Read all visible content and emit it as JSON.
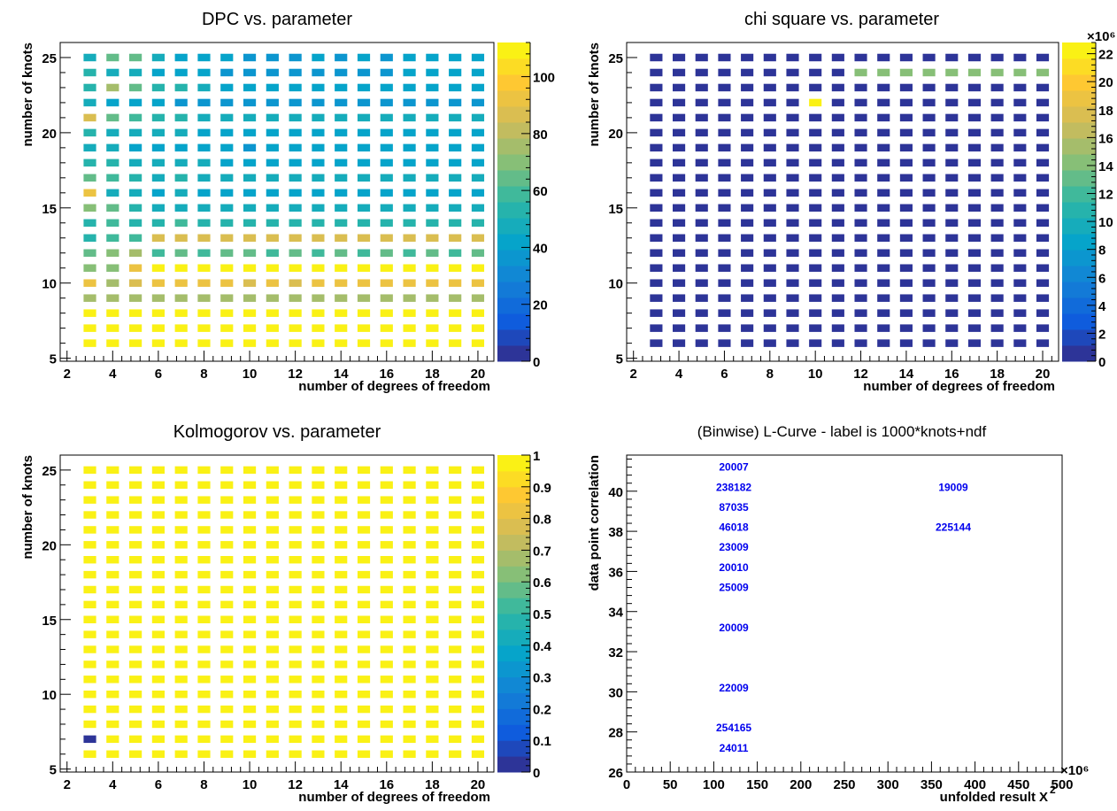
{
  "colors": {
    "palette": [
      "#352a87",
      "#0f5cdd",
      "#1481d6",
      "#06a4ca",
      "#2eb7a4",
      "#87bf77",
      "#d1bb59",
      "#fec832",
      "#f9fb0e"
    ],
    "label_color": "#0000ee",
    "axis_color": "#000000"
  },
  "chart_data": [
    {
      "id": "dpc",
      "type": "heatmap",
      "title": "DPC vs. parameter",
      "xlabel": "number of degrees of freedom",
      "ylabel": "number of knots",
      "xlim": [
        1.7,
        20.7
      ],
      "ylim": [
        4.8,
        26
      ],
      "xticks": [
        "2",
        "4",
        "6",
        "8",
        "10",
        "12",
        "14",
        "16",
        "18",
        "20"
      ],
      "yticks": [
        "5",
        "10",
        "15",
        "20",
        "25"
      ],
      "x": [
        3,
        4,
        5,
        6,
        7,
        8,
        9,
        10,
        11,
        12,
        13,
        14,
        15,
        16,
        17,
        18,
        19,
        20
      ],
      "y": [
        6,
        7,
        8,
        9,
        10,
        11,
        12,
        13,
        14,
        15,
        16,
        17,
        18,
        19,
        20,
        21,
        22,
        23,
        24,
        25
      ],
      "zlim": [
        0,
        112
      ],
      "zticks": [
        "0",
        "20",
        "40",
        "60",
        "80",
        "100"
      ],
      "z": [
        [
          110,
          110,
          110,
          110,
          110,
          110,
          110,
          110,
          110,
          110,
          110,
          110,
          110,
          110,
          110,
          110,
          110,
          110
        ],
        [
          110,
          110,
          110,
          110,
          110,
          110,
          110,
          110,
          110,
          110,
          110,
          110,
          110,
          110,
          110,
          110,
          110,
          110
        ],
        [
          110,
          110,
          110,
          110,
          110,
          110,
          110,
          110,
          110,
          110,
          110,
          110,
          110,
          110,
          110,
          110,
          110,
          110
        ],
        [
          75,
          75,
          75,
          75,
          75,
          75,
          75,
          75,
          75,
          75,
          75,
          75,
          75,
          75,
          75,
          75,
          75,
          75
        ],
        [
          92,
          78,
          85,
          95,
          92,
          92,
          90,
          88,
          92,
          88,
          92,
          95,
          92,
          95,
          92,
          92,
          92,
          90
        ],
        [
          70,
          72,
          92,
          110,
          110,
          110,
          110,
          110,
          110,
          110,
          110,
          110,
          110,
          110,
          110,
          110,
          110,
          110
        ],
        [
          62,
          68,
          75,
          60,
          62,
          60,
          62,
          62,
          60,
          62,
          60,
          62,
          60,
          62,
          60,
          62,
          60,
          62
        ],
        [
          55,
          60,
          60,
          85,
          85,
          85,
          85,
          85,
          85,
          85,
          85,
          85,
          85,
          85,
          85,
          85,
          85,
          85
        ],
        [
          55,
          58,
          55,
          55,
          58,
          55,
          55,
          55,
          55,
          55,
          55,
          55,
          55,
          55,
          55,
          55,
          55,
          55
        ],
        [
          72,
          62,
          55,
          45,
          50,
          45,
          48,
          45,
          45,
          45,
          48,
          45,
          45,
          45,
          45,
          45,
          45,
          45
        ],
        [
          92,
          50,
          45,
          42,
          45,
          42,
          42,
          40,
          42,
          42,
          42,
          42,
          42,
          42,
          42,
          42,
          42,
          42
        ],
        [
          65,
          58,
          55,
          50,
          55,
          50,
          50,
          48,
          50,
          50,
          50,
          50,
          50,
          50,
          48,
          50,
          50,
          50
        ],
        [
          55,
          55,
          50,
          45,
          45,
          45,
          42,
          42,
          42,
          42,
          42,
          42,
          42,
          42,
          42,
          42,
          42,
          42
        ],
        [
          50,
          45,
          42,
          42,
          42,
          42,
          42,
          38,
          40,
          42,
          42,
          42,
          42,
          42,
          42,
          40,
          40,
          42
        ],
        [
          55,
          50,
          50,
          48,
          45,
          42,
          42,
          40,
          42,
          42,
          42,
          42,
          42,
          42,
          42,
          42,
          42,
          42
        ],
        [
          88,
          62,
          60,
          55,
          52,
          50,
          50,
          48,
          50,
          48,
          50,
          48,
          50,
          48,
          50,
          50,
          48,
          50
        ],
        [
          48,
          42,
          42,
          40,
          38,
          38,
          38,
          38,
          38,
          38,
          38,
          38,
          38,
          38,
          38,
          38,
          38,
          38
        ],
        [
          55,
          75,
          62,
          55,
          52,
          48,
          42,
          40,
          42,
          40,
          42,
          40,
          42,
          40,
          42,
          42,
          40,
          42
        ],
        [
          55,
          50,
          50,
          42,
          42,
          40,
          38,
          35,
          36,
          38,
          38,
          38,
          38,
          38,
          40,
          40,
          42,
          42
        ],
        [
          50,
          65,
          62,
          45,
          42,
          42,
          40,
          38,
          38,
          38,
          40,
          38,
          40,
          38,
          40,
          42,
          40,
          42
        ]
      ]
    },
    {
      "id": "chisq",
      "type": "heatmap",
      "title": "chi square vs. parameter",
      "xlabel": "number of degrees of freedom",
      "ylabel": "number of knots",
      "xlim": [
        1.7,
        20.7
      ],
      "ylim": [
        4.8,
        26
      ],
      "xticks": [
        "2",
        "4",
        "6",
        "8",
        "10",
        "12",
        "14",
        "16",
        "18",
        "20"
      ],
      "yticks": [
        "5",
        "10",
        "15",
        "20",
        "25"
      ],
      "x": [
        3,
        4,
        5,
        6,
        7,
        8,
        9,
        10,
        11,
        12,
        13,
        14,
        15,
        16,
        17,
        18,
        19,
        20
      ],
      "y": [
        6,
        7,
        8,
        9,
        10,
        11,
        12,
        13,
        14,
        15,
        16,
        17,
        18,
        19,
        20,
        21,
        22,
        23,
        24,
        25
      ],
      "zlim": [
        0,
        22.8
      ],
      "zticks": [
        "0",
        "2",
        "4",
        "6",
        "8",
        "10",
        "12",
        "14",
        "16",
        "18",
        "20",
        "22"
      ],
      "zexponent": "×10⁶",
      "z_note": "All bins ~0.3 except row knots=24 for ndf 12-20 (~14) and cell (ndf=10, knots=22) = 22",
      "base": 0.3,
      "overrides": [
        {
          "x": 12,
          "y": 24,
          "v": 14.5
        },
        {
          "x": 13,
          "y": 24,
          "v": 14
        },
        {
          "x": 14,
          "y": 24,
          "v": 14
        },
        {
          "x": 15,
          "y": 24,
          "v": 14
        },
        {
          "x": 16,
          "y": 24,
          "v": 14
        },
        {
          "x": 17,
          "y": 24,
          "v": 14
        },
        {
          "x": 18,
          "y": 24,
          "v": 14
        },
        {
          "x": 19,
          "y": 24,
          "v": 14
        },
        {
          "x": 20,
          "y": 24,
          "v": 14
        },
        {
          "x": 10,
          "y": 22,
          "v": 22
        }
      ]
    },
    {
      "id": "kolmo",
      "type": "heatmap",
      "title": "Kolmogorov vs. parameter",
      "xlabel": "number of degrees of freedom",
      "ylabel": "number of knots",
      "xlim": [
        1.7,
        20.7
      ],
      "ylim": [
        4.8,
        26
      ],
      "xticks": [
        "2",
        "4",
        "6",
        "8",
        "10",
        "12",
        "14",
        "16",
        "18",
        "20"
      ],
      "yticks": [
        "5",
        "10",
        "15",
        "20",
        "25"
      ],
      "x": [
        3,
        4,
        5,
        6,
        7,
        8,
        9,
        10,
        11,
        12,
        13,
        14,
        15,
        16,
        17,
        18,
        19,
        20
      ],
      "y": [
        6,
        7,
        8,
        9,
        10,
        11,
        12,
        13,
        14,
        15,
        16,
        17,
        18,
        19,
        20,
        21,
        22,
        23,
        24,
        25
      ],
      "zlim": [
        0,
        1
      ],
      "zticks": [
        "0",
        "0.1",
        "0.2",
        "0.3",
        "0.4",
        "0.5",
        "0.6",
        "0.7",
        "0.8",
        "0.9",
        "1"
      ],
      "base": 0.99,
      "overrides": [
        {
          "x": 3,
          "y": 7,
          "v": 0.02
        }
      ]
    },
    {
      "id": "lcurve",
      "type": "scatter",
      "title": "(Binwise) L-Curve - label is 1000*knots+ndf",
      "xlabel": "unfolded result",
      "xlabel_symbol": "X",
      "xlabel_sup": "2",
      "xexponent": "×10⁶",
      "ylabel": "data point correlation",
      "xlim": [
        0,
        500
      ],
      "ylim": [
        26,
        41.8
      ],
      "xticks": [
        "0",
        "50",
        "100",
        "150",
        "200",
        "250",
        "300",
        "350",
        "400",
        "450",
        "500"
      ],
      "yticks": [
        "26",
        "28",
        "30",
        "32",
        "34",
        "36",
        "38",
        "40"
      ],
      "points": [
        {
          "label": "20007",
          "x": 123,
          "y": 41.2
        },
        {
          "label": "238182",
          "x": 123,
          "y": 40.2
        },
        {
          "label": "19009",
          "x": 375,
          "y": 40.2
        },
        {
          "label": "87035",
          "x": 123,
          "y": 39.2
        },
        {
          "label": "46018",
          "x": 123,
          "y": 38.2
        },
        {
          "label": "225144",
          "x": 375,
          "y": 38.2
        },
        {
          "label": "23009",
          "x": 123,
          "y": 37.2
        },
        {
          "label": "20010",
          "x": 123,
          "y": 36.2
        },
        {
          "label": "25009",
          "x": 123,
          "y": 35.2
        },
        {
          "label": "20009",
          "x": 123,
          "y": 33.2
        },
        {
          "label": "22009",
          "x": 123,
          "y": 30.2
        },
        {
          "label": "254165",
          "x": 123,
          "y": 28.2
        },
        {
          "label": "24011",
          "x": 123,
          "y": 27.2
        }
      ]
    }
  ]
}
